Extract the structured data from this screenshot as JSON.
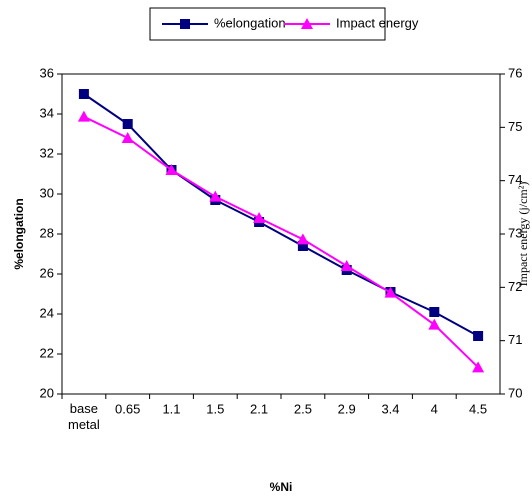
{
  "chart_data": {
    "type": "line",
    "x_label": "%Ni",
    "y_label": "%elongation",
    "y2_label": "Impact energy (j/cm²)",
    "categories": [
      "base metal",
      "0.65",
      "1.1",
      "1.5",
      "2.1",
      "2.5",
      "2.9",
      "3.4",
      "4",
      "4.5"
    ],
    "series": [
      {
        "name": "%elongation",
        "color": "#000080",
        "marker": "square",
        "values": [
          35.0,
          33.5,
          31.2,
          29.7,
          28.6,
          27.4,
          26.2,
          25.1,
          24.1,
          22.9
        ]
      },
      {
        "name": "Impact energy",
        "color": "#ff00ff",
        "marker": "triangle",
        "axis": "y2",
        "values": [
          75.2,
          74.8,
          74.2,
          73.7,
          73.3,
          72.9,
          72.4,
          71.9,
          71.3,
          70.5
        ]
      }
    ],
    "ylim": [
      20,
      36
    ],
    "yticks": [
      20,
      22,
      24,
      26,
      28,
      30,
      32,
      34,
      36
    ],
    "y2lim": [
      70,
      76
    ],
    "y2ticks": [
      70,
      71,
      72,
      73,
      74,
      75,
      76
    ]
  }
}
